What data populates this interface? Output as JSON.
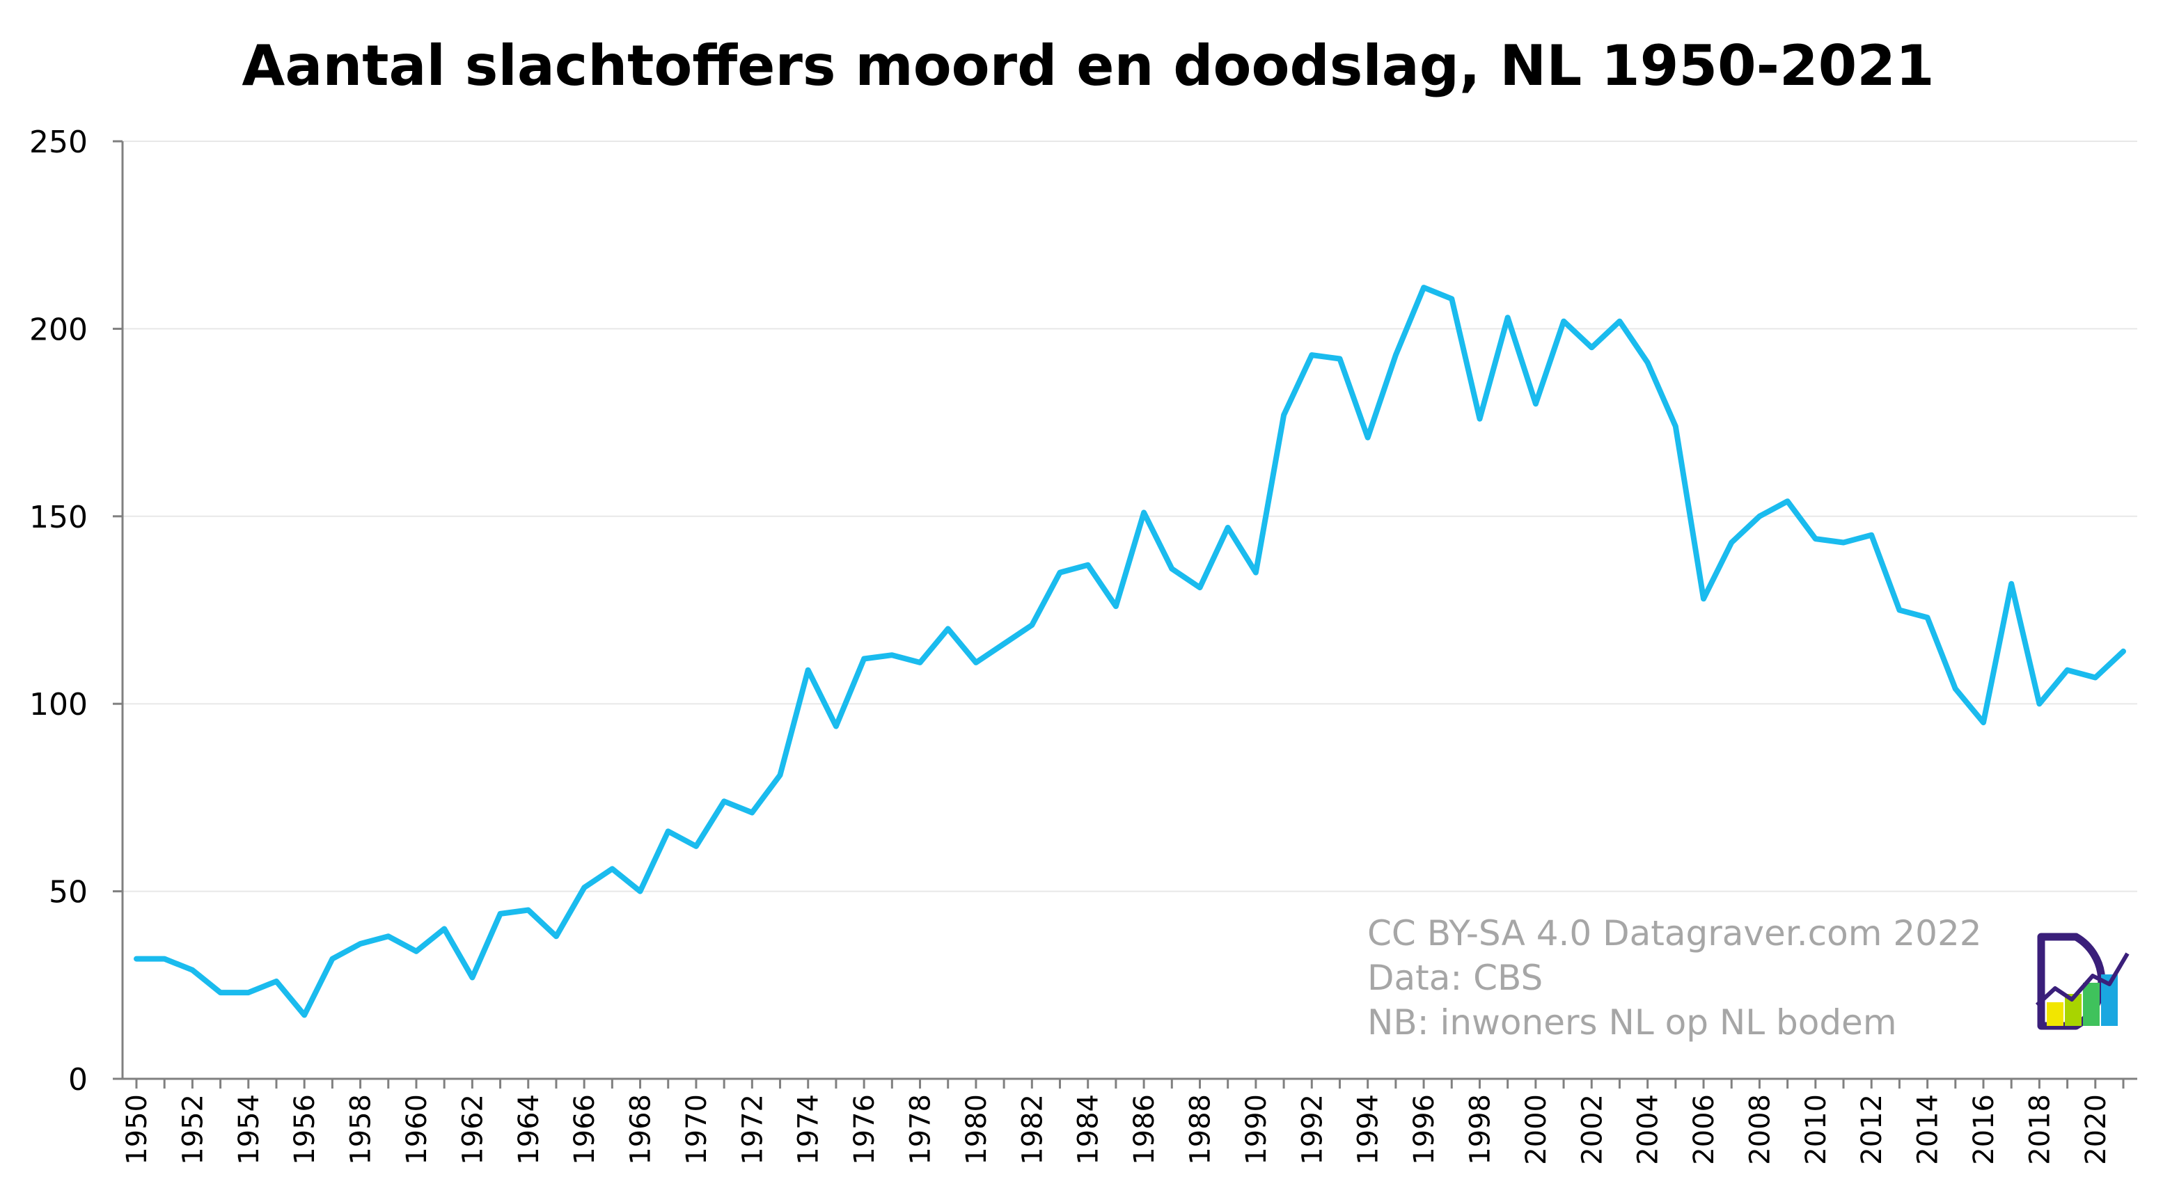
{
  "chart_data": {
    "type": "line",
    "title": "Aantal slachtoffers moord en doodslag, NL 1950-2021",
    "xlabel": "",
    "ylabel": "",
    "ylim": [
      0,
      250
    ],
    "yticks": [
      0,
      50,
      100,
      150,
      200,
      250
    ],
    "xlim": [
      1950,
      2021
    ],
    "xticks": [
      1950,
      1952,
      1954,
      1956,
      1958,
      1960,
      1962,
      1964,
      1966,
      1968,
      1970,
      1972,
      1974,
      1976,
      1978,
      1980,
      1982,
      1984,
      1986,
      1988,
      1990,
      1992,
      1994,
      1996,
      1998,
      2000,
      2002,
      2004,
      2006,
      2008,
      2010,
      2012,
      2014,
      2016,
      2018,
      2020
    ],
    "grid": true,
    "series": [
      {
        "color": "#1ABBEE",
        "x": [
          1950,
          1951,
          1952,
          1953,
          1954,
          1955,
          1956,
          1957,
          1958,
          1959,
          1960,
          1961,
          1962,
          1963,
          1964,
          1965,
          1966,
          1967,
          1968,
          1969,
          1970,
          1971,
          1972,
          1973,
          1974,
          1975,
          1976,
          1977,
          1978,
          1979,
          1980,
          1981,
          1982,
          1983,
          1984,
          1985,
          1986,
          1987,
          1988,
          1989,
          1990,
          1991,
          1992,
          1993,
          1994,
          1995,
          1996,
          1997,
          1998,
          1999,
          2000,
          2001,
          2002,
          2003,
          2004,
          2005,
          2006,
          2007,
          2008,
          2009,
          2010,
          2011,
          2012,
          2013,
          2014,
          2015,
          2016,
          2017,
          2018,
          2019,
          2020,
          2021
        ],
        "values": [
          32,
          32,
          29,
          23,
          23,
          26,
          17,
          32,
          36,
          38,
          34,
          40,
          27,
          44,
          45,
          38,
          51,
          56,
          50,
          66,
          62,
          74,
          71,
          81,
          109,
          94,
          112,
          113,
          111,
          120,
          111,
          116,
          121,
          135,
          137,
          126,
          151,
          136,
          131,
          147,
          135,
          177,
          193,
          192,
          171,
          193,
          211,
          208,
          176,
          203,
          180,
          202,
          195,
          202,
          191,
          174,
          128,
          143,
          150,
          154,
          144,
          143,
          145,
          125,
          123,
          104,
          95,
          132,
          100,
          109,
          107,
          114
        ]
      }
    ]
  },
  "credits": {
    "line1": "CC BY-SA 4.0 Datagraver.com 2022",
    "line2": "Data: CBS",
    "line3": "NB: inwoners NL op NL bodem"
  },
  "colors": {
    "line": "#1ABBEE",
    "grid": "#e8e8e8",
    "axis": "#808080",
    "credit_text": "#a6a6a6",
    "logo_outline": "#3a1f7a"
  },
  "logo": {
    "icon": "datagraver-logo-icon"
  }
}
